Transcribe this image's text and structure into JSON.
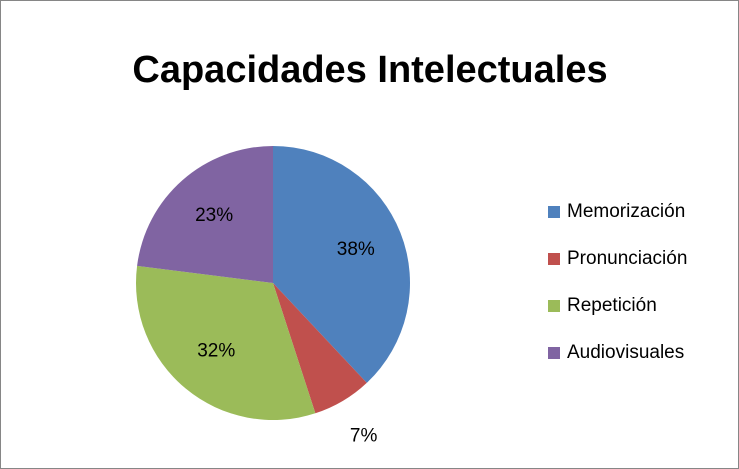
{
  "chart_data": {
    "type": "pie",
    "title": "Capacidades Intelectuales",
    "categories": [
      "Memorización",
      "Pronunciación",
      "Repetición",
      "Audiovisuales"
    ],
    "values": [
      38,
      7,
      32,
      23
    ],
    "value_labels": [
      "38%",
      "7%",
      "32%",
      "23%"
    ],
    "colors": [
      "#4f81bd",
      "#c0504d",
      "#9bbb59",
      "#8064a2"
    ],
    "legend": "right"
  }
}
